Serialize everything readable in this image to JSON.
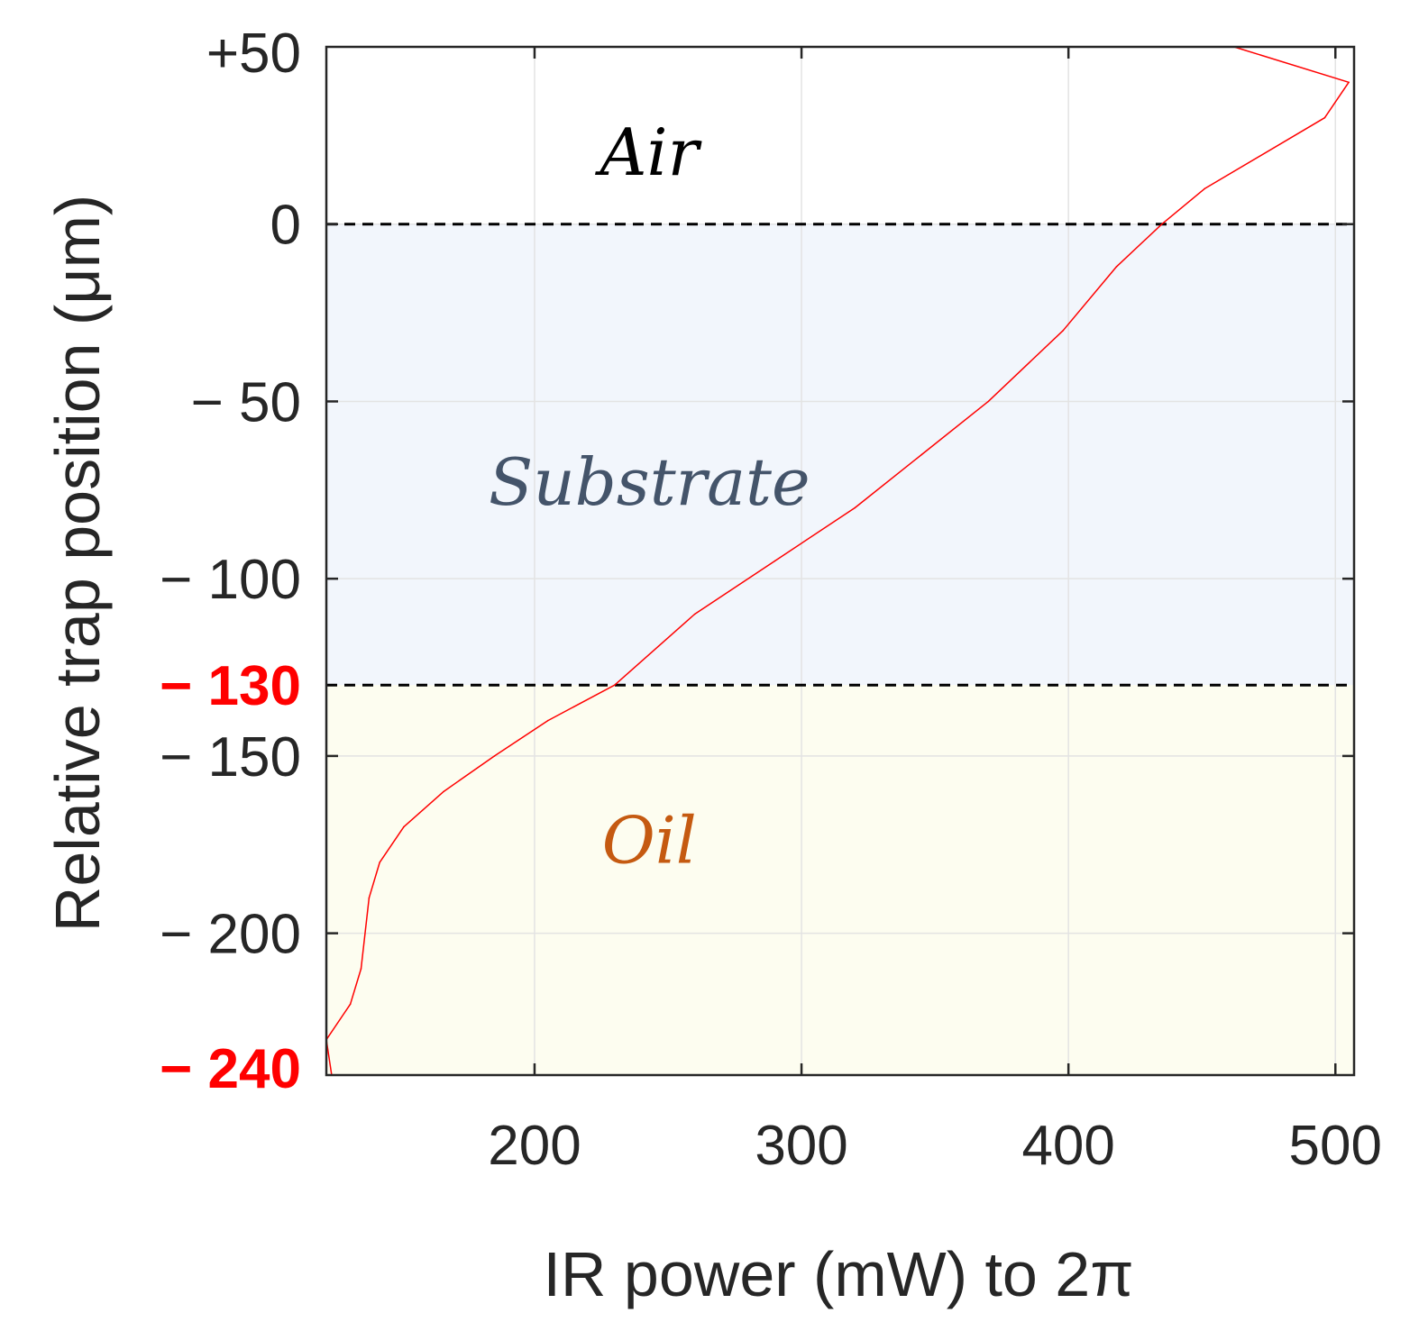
{
  "chart_data": {
    "type": "line",
    "title": "",
    "xlabel": "IR power (mW) to 2π",
    "ylabel": "Relative trap position (μm)",
    "xlim": [
      122,
      507
    ],
    "ylim": [
      -240,
      50
    ],
    "grid": true,
    "x_ticks": [
      {
        "value": 200,
        "label": "200"
      },
      {
        "value": 300,
        "label": "300"
      },
      {
        "value": 400,
        "label": "400"
      },
      {
        "value": 500,
        "label": "500"
      }
    ],
    "y_ticks": [
      {
        "value": 50,
        "label": "+50",
        "highlight": false,
        "tick": false
      },
      {
        "value": 0,
        "label": "0",
        "highlight": false,
        "tick": true
      },
      {
        "value": -50,
        "label": "− 50",
        "highlight": false,
        "tick": true
      },
      {
        "value": -100,
        "label": "− 100",
        "highlight": false,
        "tick": true
      },
      {
        "value": -130,
        "label": "− 130",
        "highlight": true,
        "tick": false
      },
      {
        "value": -150,
        "label": "− 150",
        "highlight": false,
        "tick": true
      },
      {
        "value": -200,
        "label": "− 200",
        "highlight": false,
        "tick": true
      },
      {
        "value": -240,
        "label": "− 240",
        "highlight": true,
        "tick": false
      }
    ],
    "boundaries": [
      {
        "y": 0,
        "style": "dashed"
      },
      {
        "y": -130,
        "style": "dashed"
      }
    ],
    "regions": [
      {
        "name": "Air",
        "y_range": [
          0,
          50
        ],
        "fill": "#ffffff",
        "label_color": "#000000",
        "label_at": {
          "x": 243,
          "y": 20
        }
      },
      {
        "name": "Substrate",
        "y_range": [
          -130,
          0
        ],
        "fill": "#f2f6fc",
        "label_color": "#44546a",
        "label_at": {
          "x": 243,
          "y": -73
        }
      },
      {
        "name": "Oil",
        "y_range": [
          -240,
          -130
        ],
        "fill": "#fdfdf0",
        "label_color": "#c55a11",
        "label_at": {
          "x": 243,
          "y": -174
        }
      }
    ],
    "series": [
      {
        "name": "IR power",
        "color": "#ff0000",
        "x": [
          124,
          122,
          131,
          135,
          138,
          142,
          151,
          166,
          185,
          205,
          230,
          260,
          290,
          320,
          345,
          370,
          398,
          418,
          435,
          451,
          496,
          505,
          462
        ],
        "y": [
          -240,
          -230,
          -220,
          -210,
          -190,
          -180,
          -170,
          -160,
          -150,
          -140,
          -130,
          -110,
          -95,
          -80,
          -65,
          -50,
          -30,
          -12,
          0,
          10,
          30,
          40,
          50
        ]
      }
    ]
  }
}
